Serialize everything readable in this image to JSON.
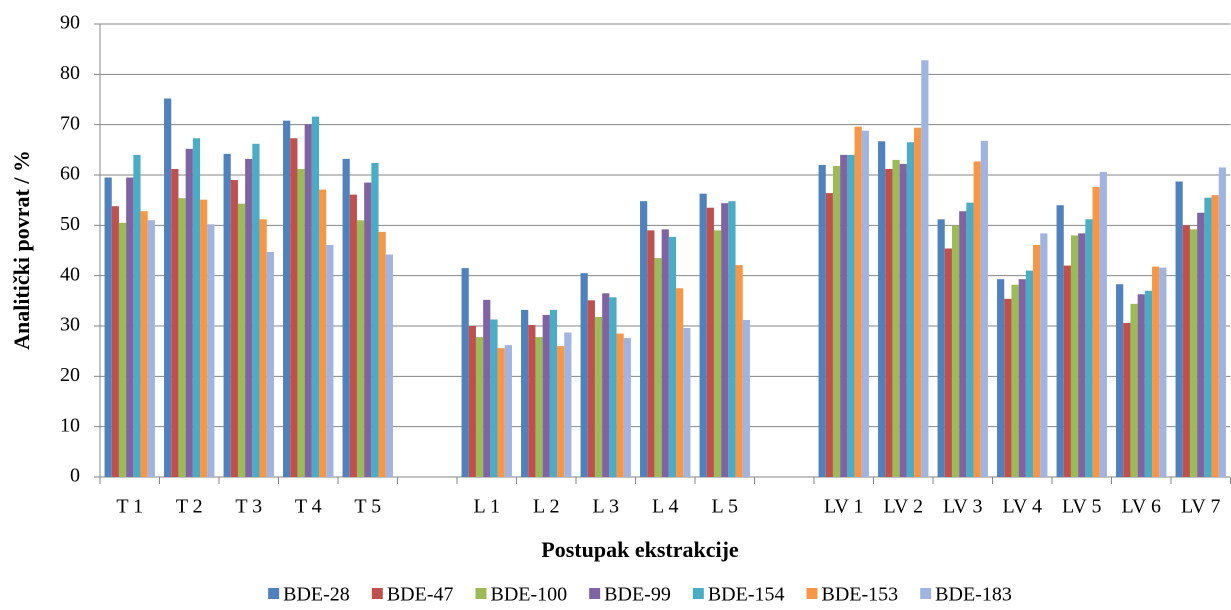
{
  "chart_data": {
    "type": "bar",
    "x_label": "Postupak ekstrakcije",
    "y_label": "Analitički  povrat / %",
    "categories": [
      "T 1",
      "T 2",
      "T 3",
      "T 4",
      "T 5",
      null,
      "L 1",
      "L 2",
      "L 3",
      "L 4",
      "L 5",
      null,
      "LV 1",
      "LV 2",
      "LV 3",
      "LV 4",
      "LV 5",
      "LV 6",
      "LV 7"
    ],
    "series": [
      {
        "name": "BDE-28",
        "color": "#4f81bd",
        "values": [
          59.5,
          75.2,
          64.2,
          70.8,
          63.2,
          null,
          41.5,
          33.2,
          40.5,
          54.8,
          56.3,
          null,
          62,
          66.7,
          51.2,
          39.3,
          54,
          38.3,
          58.7
        ]
      },
      {
        "name": "BDE-47",
        "color": "#c0504d",
        "values": [
          53.8,
          61.2,
          59,
          67.3,
          56.1,
          null,
          30,
          30.2,
          35.1,
          49,
          53.5,
          null,
          56.4,
          61.2,
          45.4,
          35.4,
          42,
          30.6,
          50
        ]
      },
      {
        "name": "BDE-100",
        "color": "#9bbb59",
        "values": [
          50.5,
          55.4,
          54.3,
          61.2,
          51,
          null,
          27.8,
          27.8,
          31.8,
          43.5,
          49,
          null,
          61.8,
          63,
          50,
          38.2,
          48,
          34.4,
          49.2
        ]
      },
      {
        "name": "BDE-99",
        "color": "#8064a2",
        "values": [
          59.5,
          65.2,
          63.2,
          70.1,
          58.5,
          null,
          35.2,
          32.2,
          36.5,
          49.2,
          54.4,
          null,
          64,
          62.2,
          52.8,
          39.3,
          48.4,
          36.3,
          52.5
        ]
      },
      {
        "name": "BDE-154",
        "color": "#4bacc6",
        "values": [
          64,
          67.3,
          66.2,
          71.6,
          62.4,
          null,
          31.3,
          33.2,
          35.7,
          47.7,
          54.8,
          null,
          64,
          66.5,
          54.5,
          41,
          51.2,
          37,
          55.5
        ]
      },
      {
        "name": "BDE-153",
        "color": "#f79646",
        "values": [
          52.8,
          55.1,
          51.2,
          57.1,
          48.7,
          null,
          25.6,
          26,
          28.5,
          37.5,
          42.1,
          null,
          69.6,
          69.4,
          62.7,
          46.1,
          57.6,
          41.8,
          56
        ]
      },
      {
        "name": "BDE-183",
        "color": "#9fb4e0",
        "values": [
          51,
          50.2,
          44.7,
          46.1,
          44.2,
          null,
          26.2,
          28.7,
          27.6,
          29.6,
          31.2,
          null,
          68.8,
          82.8,
          66.8,
          48.4,
          60.6,
          41.6,
          61.5
        ]
      }
    ],
    "ylim": [
      0,
      90
    ],
    "yticks": [
      0,
      10,
      20,
      30,
      40,
      50,
      60,
      70,
      80,
      90
    ],
    "grid": true,
    "legend": "bottom"
  }
}
